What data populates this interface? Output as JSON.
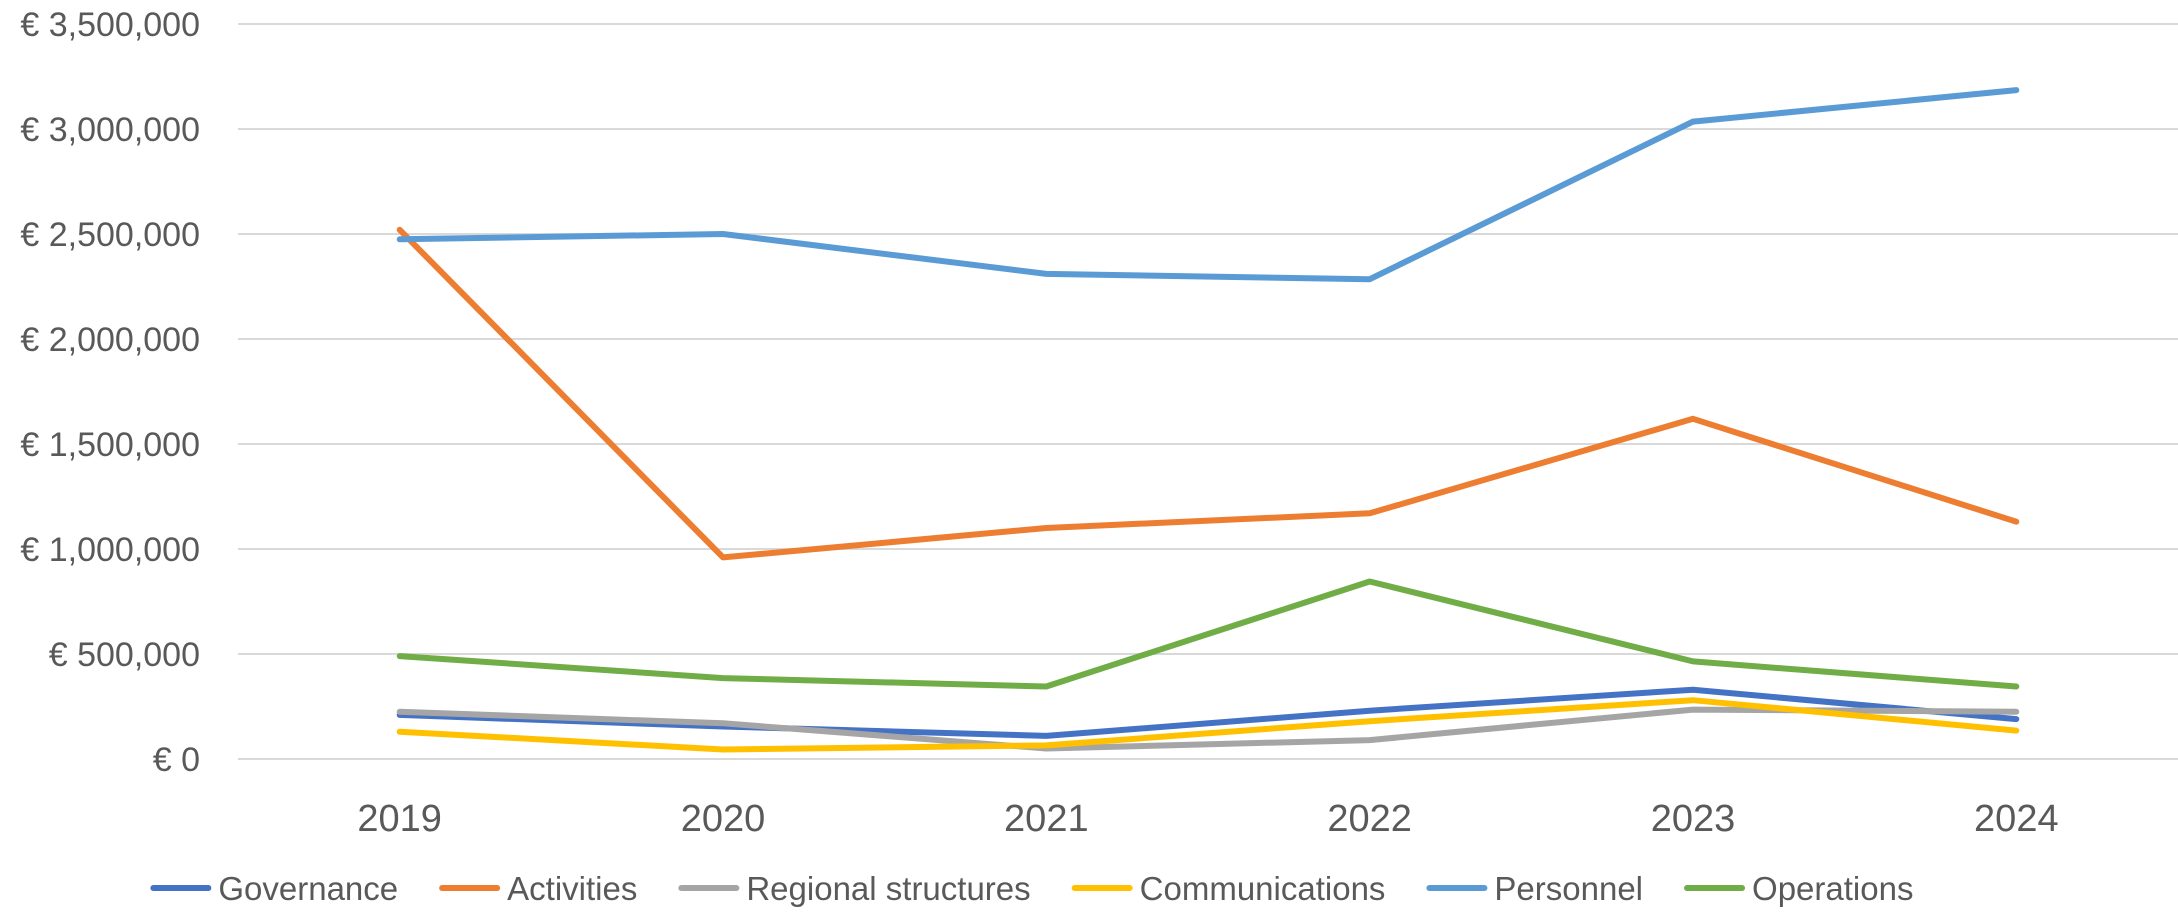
{
  "chart_data": {
    "type": "line",
    "title": "",
    "xlabel": "",
    "ylabel": "",
    "categories": [
      "2019",
      "2020",
      "2021",
      "2022",
      "2023",
      "2024"
    ],
    "ylim": [
      0,
      3500000
    ],
    "yticks": [
      0,
      500000,
      1000000,
      1500000,
      2000000,
      2500000,
      3000000,
      3500000
    ],
    "ytick_labels": [
      "€ 0",
      "€ 500,000",
      "€ 1,000,000",
      "€ 1,500,000",
      "€ 2,000,000",
      "€ 2,500,000",
      "€ 3,000,000",
      "€ 3,500,000"
    ],
    "grid": true,
    "legend_position": "bottom",
    "series": [
      {
        "name": "Governance",
        "color": "#4472C4",
        "values": [
          210000,
          155000,
          110000,
          230000,
          330000,
          190000
        ]
      },
      {
        "name": "Activities",
        "color": "#ED7D31",
        "values": [
          2520000,
          960000,
          1100000,
          1170000,
          1620000,
          1130000
        ]
      },
      {
        "name": "Regional structures",
        "color": "#A5A5A5",
        "values": [
          225000,
          170000,
          50000,
          90000,
          235000,
          225000
        ]
      },
      {
        "name": "Communications",
        "color": "#FFC000",
        "values": [
          130000,
          45000,
          65000,
          180000,
          280000,
          135000
        ]
      },
      {
        "name": "Personnel",
        "color": "#5B9BD5",
        "values": [
          2475000,
          2500000,
          2310000,
          2285000,
          3035000,
          3185000
        ]
      },
      {
        "name": "Operations",
        "color": "#70AD47",
        "values": [
          490000,
          385000,
          345000,
          845000,
          465000,
          345000
        ]
      }
    ]
  }
}
